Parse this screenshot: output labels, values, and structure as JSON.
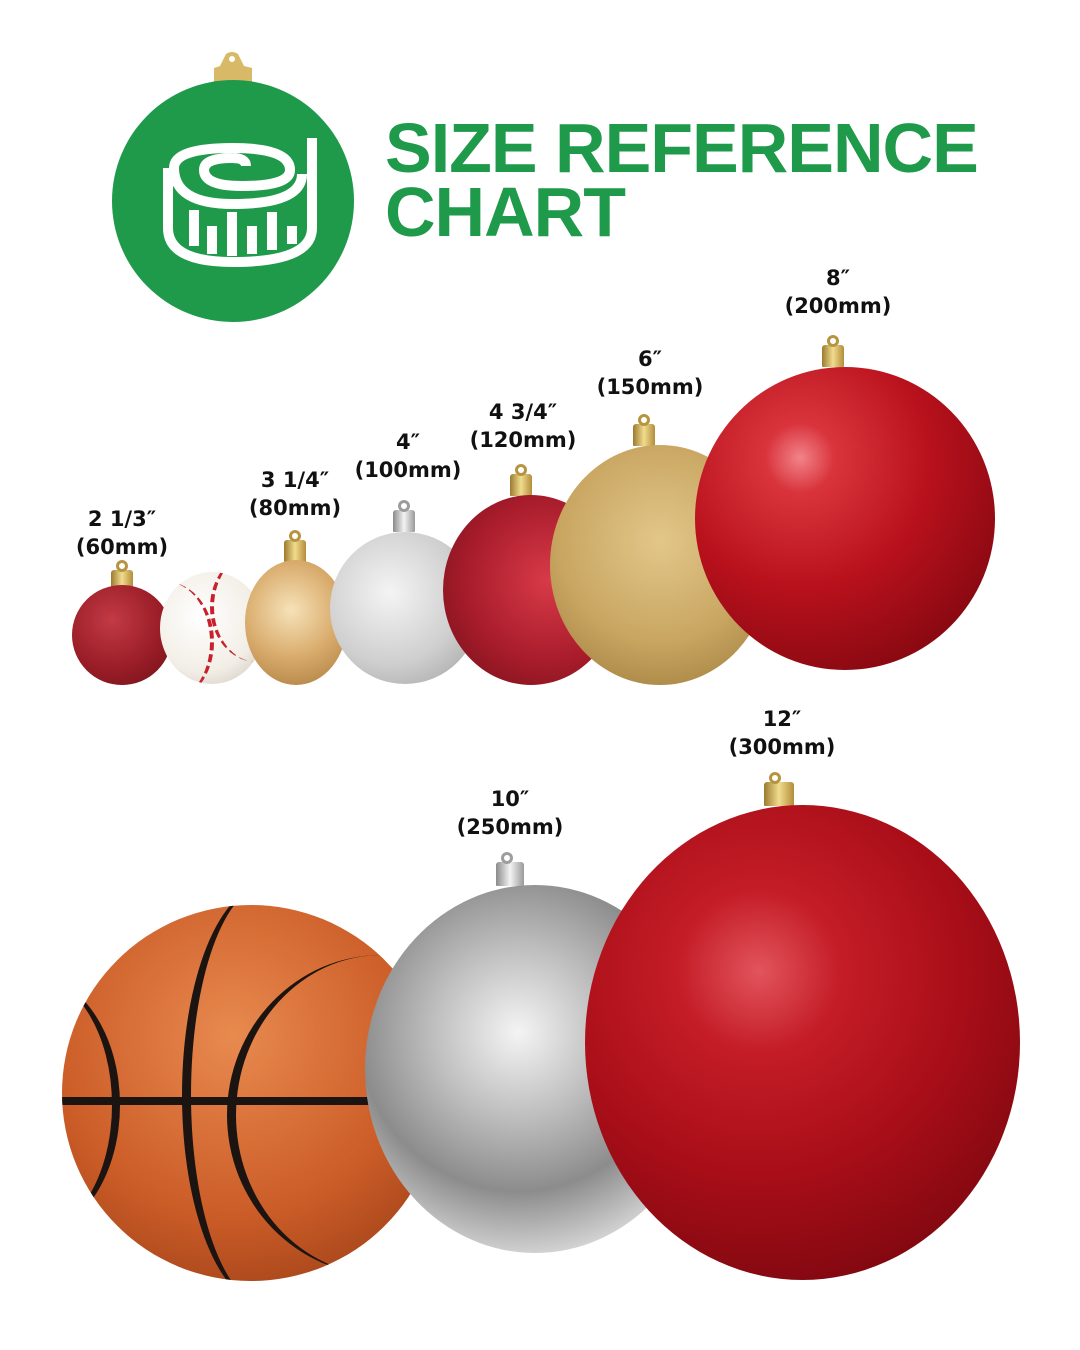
{
  "header": {
    "title_line1": "SIZE REFERENCE",
    "title_line2": "CHART",
    "logo_icon": "measuring-tape-icon",
    "brand_color": "#1f9a4b"
  },
  "row1": [
    {
      "inches": "2 1/3″",
      "mm": "(60mm)",
      "finish": "red glitter"
    },
    {
      "object": "baseball"
    },
    {
      "inches": "3 1/4″",
      "mm": "(80mm)",
      "finish": "gold shiny"
    },
    {
      "inches": "4″",
      "mm": "(100mm)",
      "finish": "silver glitter"
    },
    {
      "inches": "4 3/4″",
      "mm": "(120mm)",
      "finish": "red matte"
    },
    {
      "inches": "6″",
      "mm": "(150mm)",
      "finish": "gold matte"
    },
    {
      "inches": "8″",
      "mm": "(200mm)",
      "finish": "red shiny"
    }
  ],
  "row2": [
    {
      "object": "basketball"
    },
    {
      "inches": "10″",
      "mm": "(250mm)",
      "finish": "silver shiny"
    },
    {
      "inches": "12″",
      "mm": "(300mm)",
      "finish": "red shiny"
    }
  ]
}
